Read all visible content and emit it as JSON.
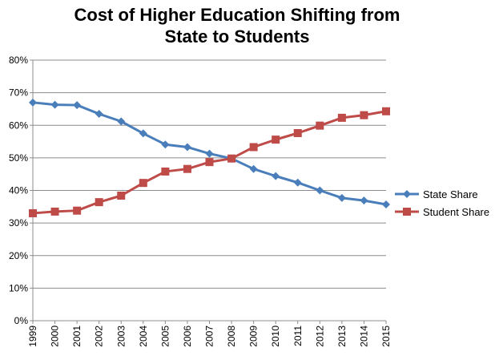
{
  "chart_data": {
    "type": "line",
    "title": [
      "Cost of Higher Education Shifting from",
      "State to Students"
    ],
    "categories": [
      "1999",
      "2000",
      "2001",
      "2002",
      "2003",
      "2004",
      "2005",
      "2006",
      "2007",
      "2008",
      "2009",
      "2010",
      "2011",
      "2012",
      "2013",
      "2014",
      "2015"
    ],
    "ylim": [
      0,
      80
    ],
    "y_ticks": [
      "0%",
      "10%",
      "20%",
      "30%",
      "40%",
      "50%",
      "60%",
      "70%",
      "80%"
    ],
    "grid": true,
    "legend_position": "right",
    "series": [
      {
        "name": "State Share",
        "color": "#4a7ebb",
        "marker": "diamond",
        "values": [
          67,
          66.3,
          66.2,
          63.5,
          61.2,
          57.5,
          54.1,
          53.3,
          51.3,
          49.8,
          46.6,
          44.4,
          42.4,
          40.0,
          37.7,
          36.9,
          35.7
        ]
      },
      {
        "name": "Student Share",
        "color": "#be4b48",
        "marker": "square",
        "values": [
          33.0,
          33.5,
          33.8,
          36.4,
          38.4,
          42.3,
          45.8,
          46.6,
          48.7,
          49.8,
          53.3,
          55.6,
          57.6,
          59.9,
          62.3,
          63.1,
          64.3
        ]
      }
    ]
  }
}
